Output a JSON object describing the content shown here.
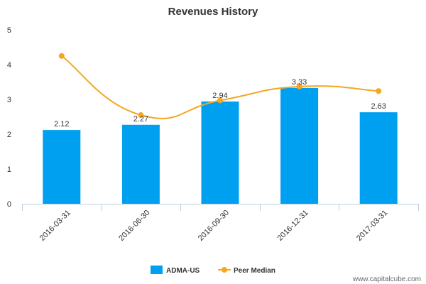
{
  "chart_data": {
    "type": "bar",
    "title": "Revenues History",
    "xlabel": "",
    "ylabel": "",
    "categories": [
      "2016-03-31",
      "2016-06-30",
      "2016-09-30",
      "2016-12-31",
      "2017-03-31"
    ],
    "series": [
      {
        "name": "ADMA-US",
        "type": "bar",
        "color": "#00a0f0",
        "values": [
          2.12,
          2.27,
          2.94,
          3.33,
          2.63
        ],
        "data_labels": [
          "2.12",
          "2.27",
          "2.94",
          "3.33",
          "2.63"
        ]
      },
      {
        "name": "Peer Median",
        "type": "line",
        "color": "#f5a623",
        "values": [
          4.25,
          2.55,
          2.97,
          3.37,
          3.24
        ]
      }
    ],
    "ylim": [
      0,
      5
    ],
    "yticks": [
      0,
      1,
      2,
      3,
      4,
      5
    ],
    "grid": false,
    "legend_position": "bottom-center"
  },
  "credit": "www.capitalcube.com"
}
